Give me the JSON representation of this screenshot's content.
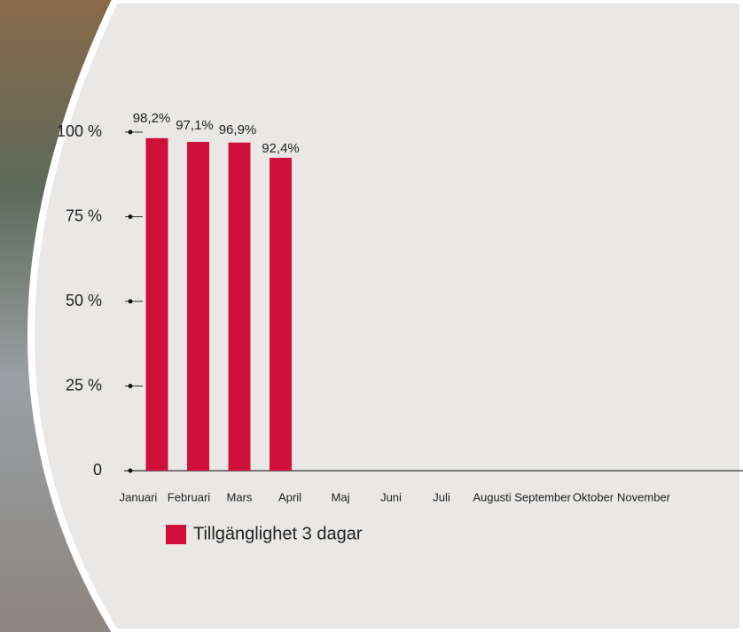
{
  "chart_data": {
    "type": "bar",
    "categories": [
      "Januari",
      "Februari",
      "Mars",
      "April",
      "Maj",
      "Juni",
      "Juli",
      "Augusti",
      "September",
      "Oktober",
      "November"
    ],
    "series": [
      {
        "name": "Tillgänglighet 3 dagar",
        "color": "#d0103a",
        "values": [
          98.2,
          97.1,
          96.9,
          92.4,
          null,
          null,
          null,
          null,
          null,
          null,
          null
        ],
        "value_labels": [
          "98,2%",
          "97,1%",
          "96,9%",
          "92,4%",
          null,
          null,
          null,
          null,
          null,
          null,
          null
        ]
      }
    ],
    "ylim": [
      0,
      100
    ],
    "yticks": [
      0,
      {
        "value": 25,
        "label": "25 %"
      },
      {
        "value": 50,
        "label": "50 %"
      },
      {
        "value": 75,
        "label": "75 %"
      },
      {
        "value": 100,
        "label": "100 %"
      }
    ]
  }
}
